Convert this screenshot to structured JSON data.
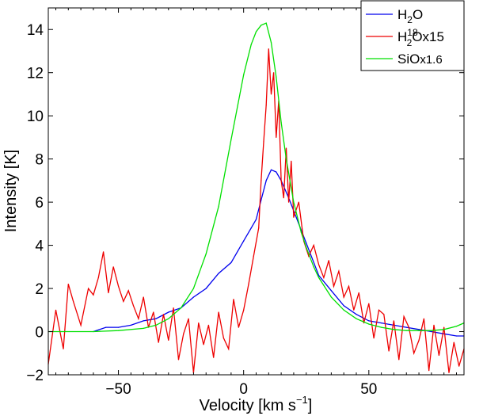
{
  "chart_data": {
    "type": "line",
    "title": "",
    "xlabel": "Velocity [km s",
    "xlabel_sup": "−1",
    "xlabel_close": "]",
    "ylabel": "Intensity [K]",
    "xlim": [
      -78,
      88
    ],
    "ylim": [
      -2,
      15
    ],
    "xticks": [
      -50,
      0,
      50
    ],
    "xtick_labels": [
      "−50",
      "0",
      "50"
    ],
    "yticks": [
      -2,
      0,
      2,
      4,
      6,
      8,
      10,
      12,
      14
    ],
    "ytick_labels": [
      "−2",
      "0",
      "2",
      "4",
      "6",
      "8",
      "10",
      "12",
      "14"
    ],
    "grid": false,
    "legend_position": "top-right",
    "series": [
      {
        "name": "H2O",
        "legend_base": "H",
        "legend_sub": "2",
        "legend_sup": "",
        "legend_tail": "O",
        "color": "#0000ee",
        "x": [
          -60,
          -55,
          -50,
          -45,
          -40,
          -35,
          -30,
          -25,
          -20,
          -15,
          -10,
          -5,
          0,
          3,
          5,
          7,
          9,
          11,
          13,
          15,
          18,
          21,
          25,
          30,
          35,
          40,
          45,
          50,
          55,
          60,
          65,
          70,
          75,
          80,
          85,
          88
        ],
        "y": [
          0.0,
          0.2,
          0.2,
          0.3,
          0.5,
          0.6,
          0.9,
          1.1,
          1.6,
          2.0,
          2.7,
          3.2,
          4.2,
          4.8,
          5.2,
          6.1,
          7.0,
          7.5,
          7.4,
          7.0,
          6.2,
          5.3,
          4.1,
          2.6,
          1.9,
          1.2,
          0.8,
          0.5,
          0.4,
          0.3,
          0.2,
          0.1,
          0.0,
          -0.1,
          -0.2,
          -0.2
        ]
      },
      {
        "name": "H2 18O x15",
        "legend_base": "H",
        "legend_sub": "2",
        "legend_sup": "18",
        "legend_tail": "Ox15",
        "color": "#ee0000",
        "x": [
          -78,
          -75,
          -72,
          -70,
          -68,
          -65,
          -62,
          -60,
          -58,
          -56,
          -54,
          -52,
          -50,
          -48,
          -46,
          -44,
          -42,
          -40,
          -38,
          -36,
          -34,
          -32,
          -30,
          -28,
          -26,
          -24,
          -22,
          -20,
          -18,
          -16,
          -14,
          -12,
          -10,
          -8,
          -6,
          -4,
          -2,
          0,
          2,
          4,
          6,
          7,
          8,
          9,
          10,
          11,
          12,
          13,
          14,
          15,
          16,
          17,
          18,
          19,
          20,
          22,
          24,
          26,
          28,
          30,
          32,
          34,
          36,
          38,
          40,
          42,
          44,
          46,
          48,
          50,
          52,
          54,
          56,
          58,
          60,
          62,
          64,
          66,
          68,
          70,
          72,
          74,
          76,
          78,
          80,
          82,
          84,
          86,
          88
        ],
        "y": [
          -1.5,
          1.0,
          -0.8,
          2.2,
          1.4,
          0.3,
          2.0,
          1.7,
          2.5,
          3.7,
          1.8,
          3.0,
          2.1,
          1.4,
          1.9,
          1.2,
          0.6,
          1.6,
          0.2,
          0.9,
          -0.5,
          0.8,
          -0.4,
          1.1,
          -1.3,
          -0.1,
          0.6,
          -1.9,
          0.4,
          -0.6,
          0.3,
          -1.2,
          0.9,
          -0.3,
          -0.8,
          1.5,
          0.2,
          1.0,
          2.2,
          3.5,
          4.8,
          7.0,
          8.8,
          10.5,
          13.1,
          11.0,
          12.0,
          9.0,
          10.7,
          7.0,
          6.2,
          8.5,
          6.0,
          7.9,
          5.3,
          6.0,
          4.2,
          3.5,
          4.0,
          3.1,
          2.5,
          3.3,
          2.1,
          2.8,
          1.6,
          2.1,
          1.0,
          1.8,
          0.4,
          1.3,
          -0.3,
          1.0,
          0.8,
          -0.9,
          0.5,
          -1.3,
          0.7,
          0.2,
          -1.0,
          -0.4,
          0.6,
          -1.8,
          0.3,
          -1.1,
          0.2,
          -1.9,
          -0.5,
          -1.6,
          -0.8
        ]
      },
      {
        "name": "SiO x1.6",
        "legend_base": "SiO",
        "legend_sub": "",
        "legend_sup": "",
        "legend_tail": "x1.6",
        "color": "#00e000",
        "x": [
          -78,
          -60,
          -50,
          -40,
          -35,
          -30,
          -25,
          -20,
          -15,
          -10,
          -5,
          0,
          3,
          5,
          7,
          9,
          11,
          13,
          15,
          17,
          20,
          23,
          25,
          28,
          30,
          35,
          40,
          45,
          50,
          55,
          60,
          65,
          70,
          75,
          80,
          85,
          88
        ],
        "y": [
          0.0,
          0.0,
          0.05,
          0.15,
          0.3,
          0.6,
          1.1,
          2.0,
          3.6,
          5.8,
          8.9,
          11.9,
          13.3,
          13.9,
          14.2,
          14.3,
          13.4,
          11.8,
          9.7,
          8.0,
          6.0,
          4.6,
          3.9,
          3.0,
          2.5,
          1.6,
          1.0,
          0.6,
          0.35,
          0.2,
          0.1,
          0.05,
          0.05,
          0.05,
          0.1,
          0.25,
          0.4
        ]
      }
    ]
  }
}
